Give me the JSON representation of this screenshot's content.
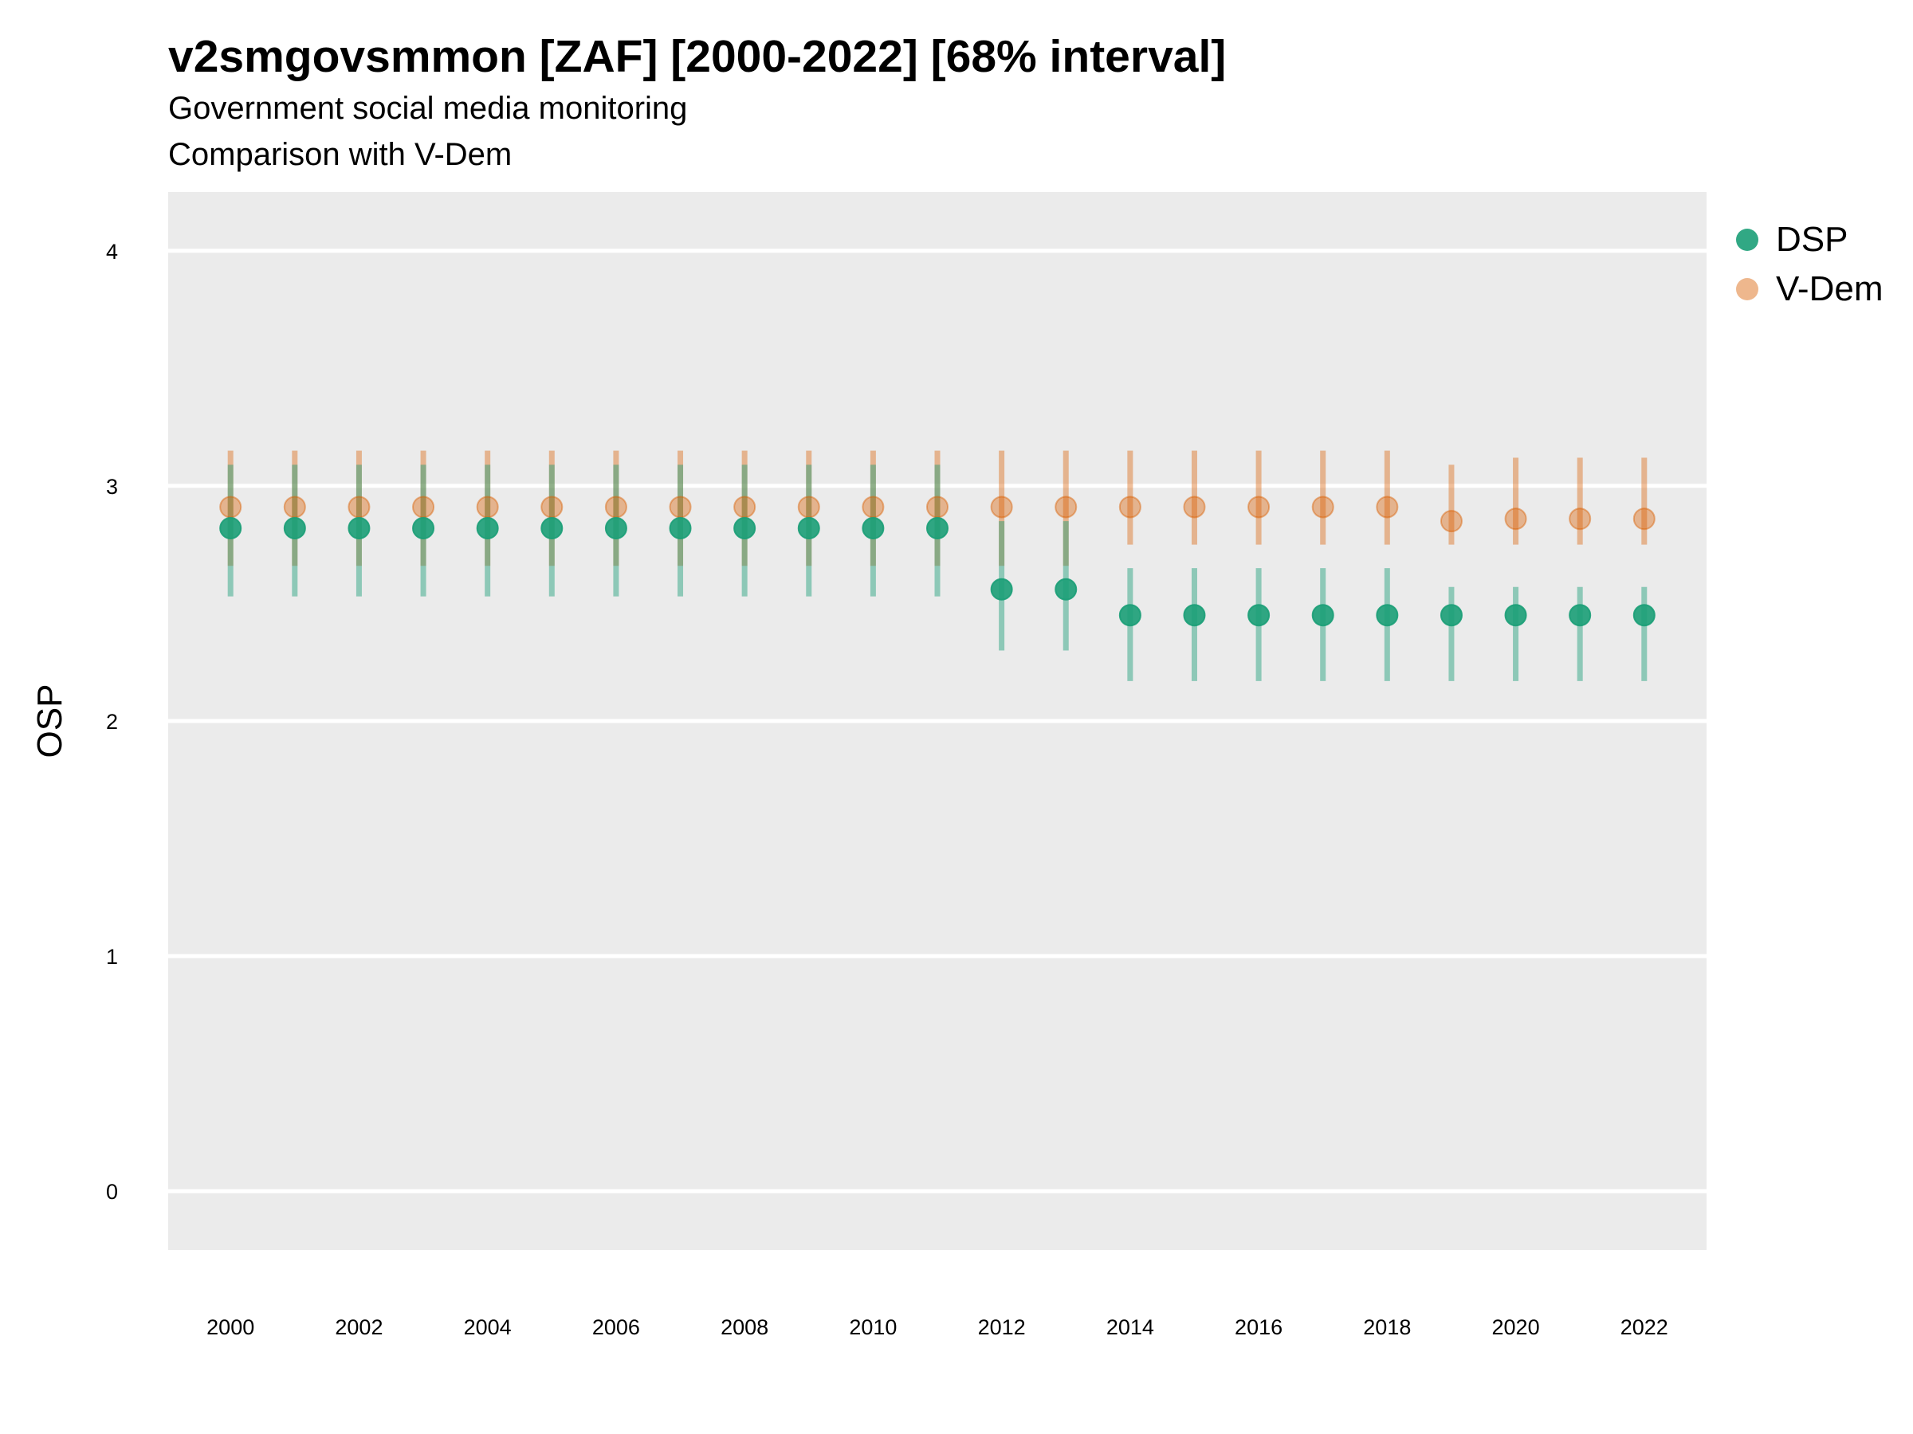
{
  "chart_data": {
    "type": "scatter",
    "title": "v2smgovsmmon [ZAF] [2000-2022] [68% interval]",
    "subtitle": "Government social media monitoring",
    "caption": "Comparison with V-Dem",
    "ylabel": "OSP",
    "xlabel": "",
    "ylim": [
      -0.25,
      4.25
    ],
    "yticks": [
      0,
      1,
      2,
      3,
      4
    ],
    "xticks": [
      2000,
      2002,
      2004,
      2006,
      2008,
      2010,
      2012,
      2014,
      2016,
      2018,
      2020,
      2022
    ],
    "grid": true,
    "legend_position": "right",
    "x": [
      2000,
      2001,
      2002,
      2003,
      2004,
      2005,
      2006,
      2007,
      2008,
      2009,
      2010,
      2011,
      2012,
      2013,
      2014,
      2015,
      2016,
      2017,
      2018,
      2019,
      2020,
      2021,
      2022
    ],
    "series": [
      {
        "name": "DSP",
        "color": "#1b9e77",
        "values": [
          2.82,
          2.82,
          2.82,
          2.82,
          2.82,
          2.82,
          2.82,
          2.82,
          2.82,
          2.82,
          2.82,
          2.82,
          2.56,
          2.56,
          2.45,
          2.45,
          2.45,
          2.45,
          2.45,
          2.45,
          2.45,
          2.45,
          2.45
        ],
        "lower": [
          2.53,
          2.53,
          2.53,
          2.53,
          2.53,
          2.53,
          2.53,
          2.53,
          2.53,
          2.53,
          2.53,
          2.53,
          2.3,
          2.3,
          2.17,
          2.17,
          2.17,
          2.17,
          2.17,
          2.17,
          2.17,
          2.17,
          2.17
        ],
        "upper": [
          3.09,
          3.09,
          3.09,
          3.09,
          3.09,
          3.09,
          3.09,
          3.09,
          3.09,
          3.09,
          3.09,
          3.09,
          2.85,
          2.85,
          2.65,
          2.65,
          2.65,
          2.65,
          2.65,
          2.57,
          2.57,
          2.57,
          2.57
        ]
      },
      {
        "name": "V-Dem",
        "color": "#d95f02",
        "values": [
          2.91,
          2.91,
          2.91,
          2.91,
          2.91,
          2.91,
          2.91,
          2.91,
          2.91,
          2.91,
          2.91,
          2.91,
          2.91,
          2.91,
          2.91,
          2.91,
          2.91,
          2.91,
          2.91,
          2.85,
          2.86,
          2.86,
          2.86
        ],
        "lower": [
          2.66,
          2.66,
          2.66,
          2.66,
          2.66,
          2.66,
          2.66,
          2.66,
          2.66,
          2.66,
          2.66,
          2.66,
          2.66,
          2.66,
          2.75,
          2.75,
          2.75,
          2.75,
          2.75,
          2.75,
          2.75,
          2.75,
          2.75
        ],
        "upper": [
          3.15,
          3.15,
          3.15,
          3.15,
          3.15,
          3.15,
          3.15,
          3.15,
          3.15,
          3.15,
          3.15,
          3.15,
          3.15,
          3.15,
          3.15,
          3.15,
          3.15,
          3.15,
          3.15,
          3.09,
          3.12,
          3.12,
          3.12
        ]
      }
    ]
  }
}
